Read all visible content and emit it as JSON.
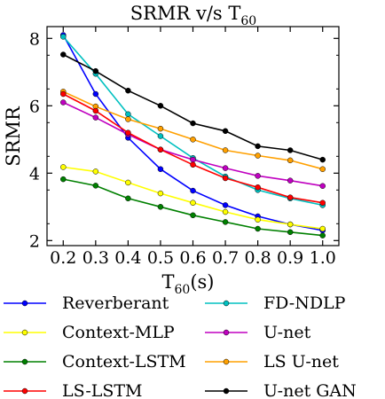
{
  "chart_data": {
    "type": "line",
    "title": "SRMR v/s T",
    "title_sub": "60",
    "xlabel_main": "T",
    "xlabel_sub": "60",
    "xlabel_unit": "(s)",
    "ylabel": "SRMR",
    "x": [
      0.2,
      0.3,
      0.4,
      0.5,
      0.6,
      0.7,
      0.8,
      0.9,
      1.0
    ],
    "x_tick_labels": [
      "0.2",
      "0.3",
      "0.4",
      "0.5",
      "0.6",
      "0.7",
      "0.8",
      "0.9",
      "1.0"
    ],
    "xlim": [
      0.15,
      1.05
    ],
    "ylim": [
      1.85,
      8.35
    ],
    "y_ticks": [
      2,
      4,
      6,
      8
    ],
    "y_tick_labels": [
      "2",
      "4",
      "6",
      "8"
    ],
    "grid": false,
    "legend_position": "below",
    "series": [
      {
        "name": "Reverberant",
        "color": "#0000ff",
        "values": [
          8.1,
          6.35,
          5.05,
          4.12,
          3.48,
          3.05,
          2.72,
          2.48,
          2.3
        ]
      },
      {
        "name": "FD-NDLP",
        "color": "#00c0c0",
        "values": [
          8.05,
          6.95,
          5.75,
          5.1,
          4.45,
          3.9,
          3.5,
          3.25,
          3.05
        ]
      },
      {
        "name": "Context-MLP",
        "color": "#ffff00",
        "values": [
          4.18,
          4.05,
          3.72,
          3.4,
          3.12,
          2.85,
          2.62,
          2.48,
          2.35
        ]
      },
      {
        "name": "U-net",
        "color": "#c000c0",
        "values": [
          6.1,
          5.65,
          5.15,
          4.7,
          4.4,
          4.15,
          3.92,
          3.78,
          3.62
        ]
      },
      {
        "name": "Context-LSTM",
        "color": "#008000",
        "values": [
          3.82,
          3.63,
          3.25,
          3.0,
          2.75,
          2.55,
          2.35,
          2.25,
          2.15
        ]
      },
      {
        "name": "LS U-net",
        "color": "#ffa000",
        "values": [
          6.42,
          5.98,
          5.6,
          5.32,
          5.0,
          4.68,
          4.52,
          4.38,
          4.12
        ]
      },
      {
        "name": "LS-LSTM",
        "color": "#ff0000",
        "values": [
          6.35,
          5.85,
          5.2,
          4.7,
          4.25,
          3.85,
          3.58,
          3.28,
          3.12
        ]
      },
      {
        "name": "U-net GAN",
        "color": "#000000",
        "values": [
          7.52,
          7.03,
          6.45,
          6.0,
          5.48,
          5.25,
          4.8,
          4.68,
          4.4
        ]
      }
    ]
  }
}
